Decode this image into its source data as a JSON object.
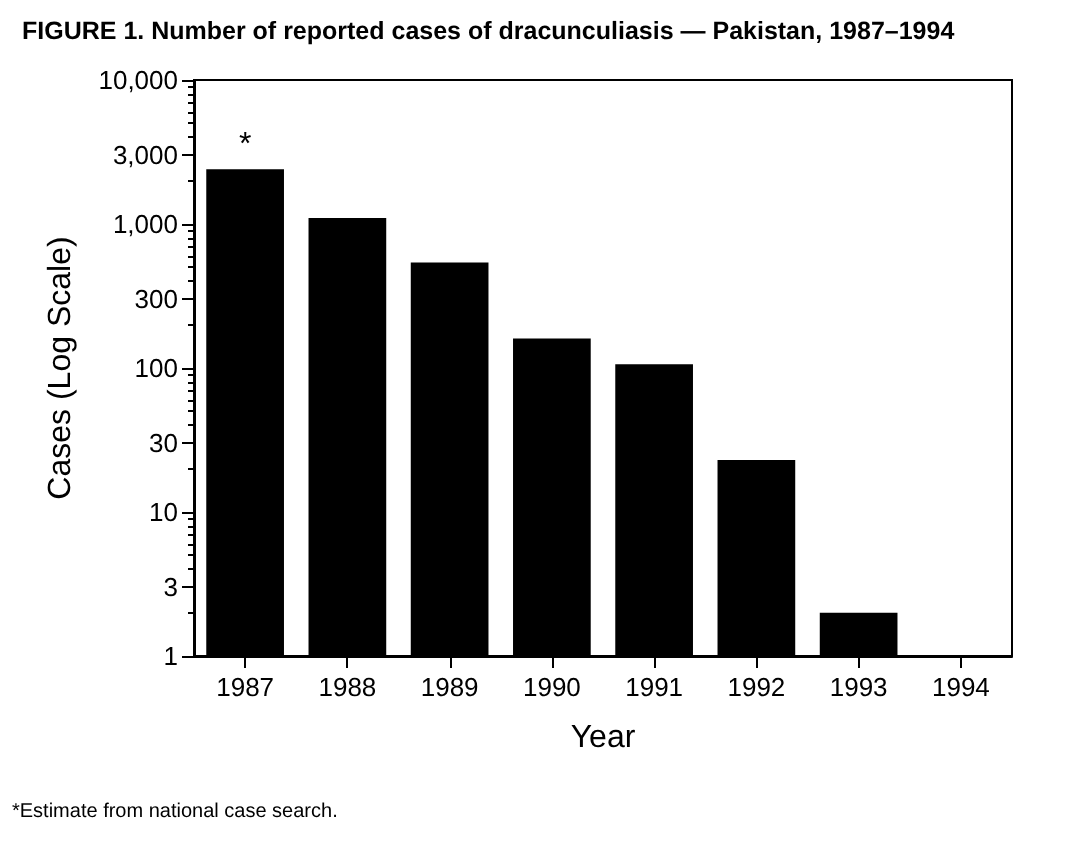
{
  "chart_data": {
    "type": "bar",
    "title": "FIGURE 1. Number of reported cases of dracunculiasis — Pakistan, 1987–1994",
    "xlabel": "Year",
    "ylabel": "Cases (Log Scale)",
    "categories": [
      "1987",
      "1988",
      "1989",
      "1990",
      "1991",
      "1992",
      "1993",
      "1994"
    ],
    "values": [
      2400,
      1100,
      540,
      160,
      106,
      23,
      2,
      null
    ],
    "color": "#000000",
    "log": "y",
    "ylim": [
      1,
      10000
    ],
    "yticks": [
      1,
      3,
      10,
      30,
      100,
      300,
      {
        "value": 1000,
        "label": "1,000"
      },
      {
        "value": 3000,
        "label": "3,000"
      },
      {
        "value": 10000,
        "label": "10,000"
      }
    ],
    "grid": false,
    "annotations": [
      "*",
      "*Estimate from national case search."
    ]
  }
}
